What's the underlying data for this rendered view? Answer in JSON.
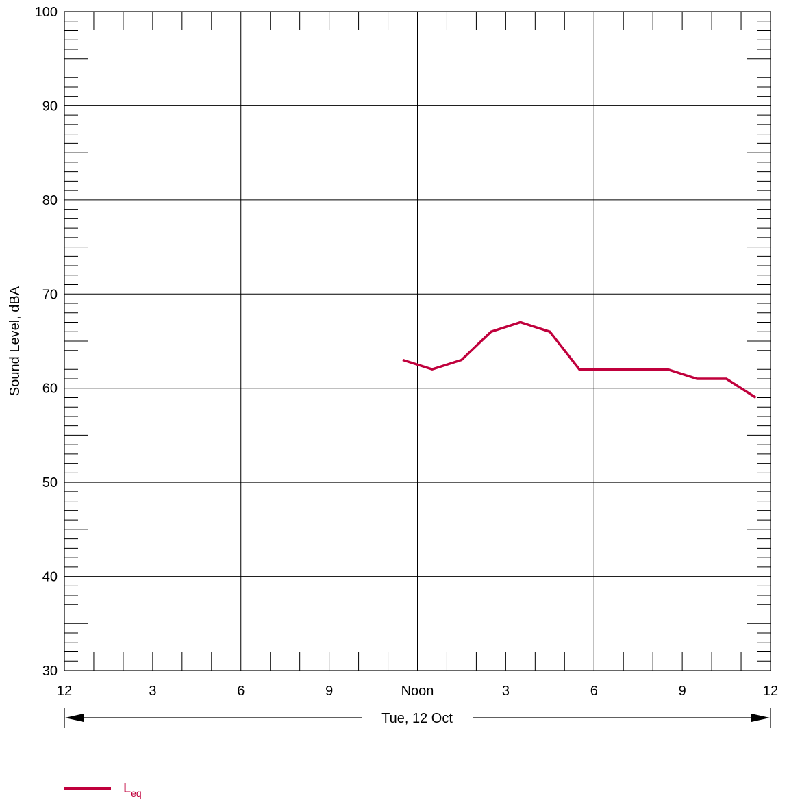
{
  "chart_data": {
    "type": "line",
    "title": "",
    "xlabel": "Tue, 12 Oct",
    "ylabel": "Sound Level, dBA",
    "ylim": [
      30,
      100
    ],
    "xlim_hours": [
      0,
      24
    ],
    "grid": true,
    "x_tick_labels": [
      "12",
      "3",
      "6",
      "9",
      "Noon",
      "3",
      "6",
      "9",
      "12"
    ],
    "y_tick_labels": [
      "30",
      "40",
      "50",
      "60",
      "70",
      "80",
      "90",
      "100"
    ],
    "legend_position": "bottom-left",
    "series": [
      {
        "name": "Leq",
        "color": "#c0003c",
        "x_hours": [
          11.5,
          12.5,
          13.5,
          14.5,
          15.5,
          16.5,
          17.5,
          18.5,
          19.5,
          20.5,
          21.5,
          22.5,
          23.5
        ],
        "values": [
          63,
          62,
          63,
          66,
          67,
          66,
          62,
          62,
          62,
          62,
          61,
          61,
          59
        ]
      }
    ]
  },
  "legend": {
    "label_main": "L",
    "label_sub": "eq"
  }
}
